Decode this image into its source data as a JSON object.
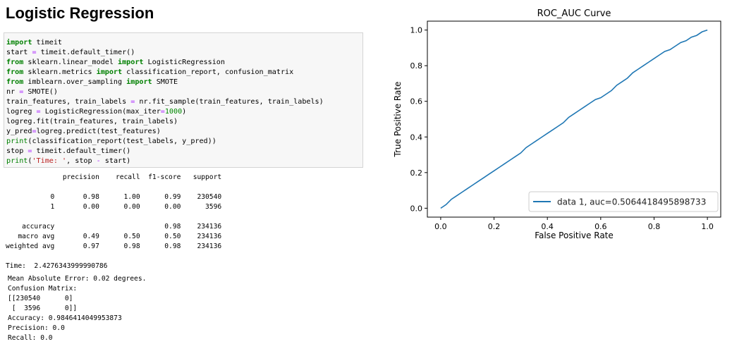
{
  "notebook": {
    "section_title": "Logistic Regression",
    "code_lines": [
      [
        {
          "t": "import",
          "c": "kw"
        },
        {
          "t": " timeit"
        }
      ],
      [
        {
          "t": "start "
        },
        {
          "t": "=",
          "c": "op"
        },
        {
          "t": " timeit.default_timer()"
        }
      ],
      [
        {
          "t": "from",
          "c": "kw"
        },
        {
          "t": " sklearn.linear_model "
        },
        {
          "t": "import",
          "c": "kw"
        },
        {
          "t": " LogisticRegression"
        }
      ],
      [
        {
          "t": "from",
          "c": "kw"
        },
        {
          "t": " sklearn.metrics "
        },
        {
          "t": "import",
          "c": "kw"
        },
        {
          "t": " classification_report, confusion_matrix"
        }
      ],
      [
        {
          "t": "from",
          "c": "kw"
        },
        {
          "t": " imblearn.over_sampling "
        },
        {
          "t": "import",
          "c": "kw"
        },
        {
          "t": " SMOTE"
        }
      ],
      [
        {
          "t": "nr "
        },
        {
          "t": "=",
          "c": "op"
        },
        {
          "t": " SMOTE()"
        }
      ],
      [
        {
          "t": "train_features, train_labels "
        },
        {
          "t": "=",
          "c": "op"
        },
        {
          "t": " nr.fit_sample(train_features, train_labels)"
        }
      ],
      [
        {
          "t": "logreg "
        },
        {
          "t": "=",
          "c": "op"
        },
        {
          "t": " LogisticRegression(max_iter"
        },
        {
          "t": "=",
          "c": "op"
        },
        {
          "t": "1000",
          "c": "num"
        },
        {
          "t": ")"
        }
      ],
      [
        {
          "t": "logreg.fit(train_features, train_labels)"
        }
      ],
      [
        {
          "t": "y_pred"
        },
        {
          "t": "=",
          "c": "op"
        },
        {
          "t": "logreg.predict(test_features)"
        }
      ],
      [
        {
          "t": "print",
          "c": "fn"
        },
        {
          "t": "(classification_report(test_labels, y_pred))"
        }
      ],
      [
        {
          "t": "stop "
        },
        {
          "t": "=",
          "c": "op"
        },
        {
          "t": " timeit.default_timer()"
        }
      ],
      [
        {
          "t": "print",
          "c": "fn"
        },
        {
          "t": "("
        },
        {
          "t": "'Time: '",
          "c": "str"
        },
        {
          "t": ", stop "
        },
        {
          "t": "-",
          "c": "op"
        },
        {
          "t": " start)"
        }
      ]
    ],
    "classification_report": "              precision    recall  f1-score   support\n\n           0       0.98      1.00      0.99    230540\n           1       0.00      0.00      0.00      3596\n\n    accuracy                           0.98    234136\n   macro avg       0.49      0.50      0.50    234136\nweighted avg       0.97      0.98      0.98    234136",
    "time_line": "Time:  2.4276343999990786",
    "metrics_output": "Mean Absolute Error: 0.02 degrees.\nConfusion Matrix:\n[[230540      0]\n [  3596      0]]\nAccuracy: 0.9846414049953873\nPrecision: 0.0\nRecall: 0.0"
  },
  "chart_data": {
    "type": "line",
    "title": "ROC_AUC Curve",
    "xlabel": "False Positive Rate",
    "ylabel": "True Positive Rate",
    "xlim": [
      -0.05,
      1.05
    ],
    "ylim": [
      -0.05,
      1.05
    ],
    "xticks": [
      0.0,
      0.2,
      0.4,
      0.6,
      0.8,
      1.0
    ],
    "yticks": [
      0.0,
      0.2,
      0.4,
      0.6,
      0.8,
      1.0
    ],
    "xtick_labels": [
      "0.0",
      "0.2",
      "0.4",
      "0.6",
      "0.8",
      "1.0"
    ],
    "ytick_labels": [
      "0.0",
      "0.2",
      "0.4",
      "0.6",
      "0.8",
      "1.0"
    ],
    "grid": false,
    "legend_position": "lower-right",
    "series": [
      {
        "name": "data 1, auc=0.5064418495898733",
        "color": "#1f77b4",
        "x": [
          0.0,
          0.02,
          0.04,
          0.06,
          0.08,
          0.1,
          0.12,
          0.14,
          0.16,
          0.18,
          0.2,
          0.22,
          0.24,
          0.26,
          0.28,
          0.3,
          0.32,
          0.34,
          0.36,
          0.38,
          0.4,
          0.42,
          0.44,
          0.46,
          0.48,
          0.5,
          0.52,
          0.54,
          0.56,
          0.58,
          0.6,
          0.62,
          0.64,
          0.66,
          0.68,
          0.7,
          0.72,
          0.74,
          0.76,
          0.78,
          0.8,
          0.82,
          0.84,
          0.86,
          0.88,
          0.9,
          0.92,
          0.94,
          0.96,
          0.98,
          1.0
        ],
        "y": [
          0.0,
          0.02,
          0.05,
          0.07,
          0.09,
          0.11,
          0.13,
          0.15,
          0.17,
          0.19,
          0.21,
          0.23,
          0.25,
          0.27,
          0.29,
          0.31,
          0.34,
          0.36,
          0.38,
          0.4,
          0.42,
          0.44,
          0.46,
          0.48,
          0.51,
          0.53,
          0.55,
          0.57,
          0.59,
          0.61,
          0.62,
          0.64,
          0.66,
          0.69,
          0.71,
          0.73,
          0.76,
          0.78,
          0.8,
          0.82,
          0.84,
          0.86,
          0.88,
          0.89,
          0.91,
          0.93,
          0.94,
          0.96,
          0.97,
          0.99,
          1.0
        ]
      }
    ]
  }
}
